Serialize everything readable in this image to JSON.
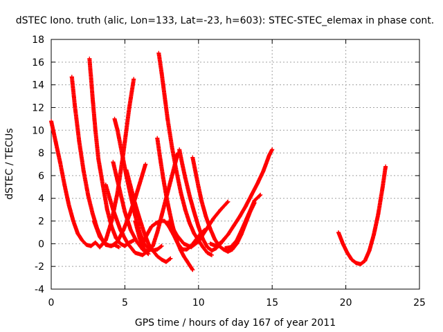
{
  "chart_data": {
    "type": "scatter",
    "title": "dSTEC Iono. truth (alic, Lon=133, Lat=-23, h=603): STEC-STEC_elemax in phase cont.",
    "xlabel": "GPS time / hours of day 167 of year 2011",
    "ylabel": "dSTEC  / TECUs",
    "xlim": [
      0,
      25
    ],
    "ylim": [
      -4,
      18
    ],
    "x_ticks": [
      0,
      5,
      10,
      15,
      20,
      25
    ],
    "y_ticks": [
      -4,
      -2,
      0,
      2,
      4,
      6,
      8,
      10,
      12,
      14,
      16,
      18
    ],
    "x_tick_labels": [
      "0",
      "5",
      "10",
      "15",
      "20",
      "25"
    ],
    "y_tick_labels": [
      "-4",
      "-2",
      "0",
      "2",
      "4",
      "6",
      "8",
      "10",
      "12",
      "14",
      "16",
      "18"
    ],
    "grid": true,
    "marker": "plus",
    "marker_color": "#ff0000",
    "series": [
      {
        "x": [
          0.0,
          0.3,
          0.6,
          0.9,
          1.2,
          1.5,
          1.8,
          2.1,
          2.4,
          2.7,
          3.0,
          3.3
        ],
        "y": [
          10.8,
          9.0,
          7.2,
          5.2,
          3.4,
          2.0,
          0.9,
          0.3,
          -0.1,
          -0.2,
          0.1,
          -0.3
        ]
      },
      {
        "x": [
          1.4,
          1.6,
          1.9,
          2.2,
          2.5,
          2.8,
          3.1,
          3.4,
          3.7,
          4.0,
          4.3,
          4.6
        ],
        "y": [
          14.7,
          12.2,
          9.0,
          6.4,
          4.3,
          2.7,
          1.4,
          0.5,
          0.0,
          -0.2,
          -0.1,
          -0.3
        ]
      },
      {
        "x": [
          2.6,
          2.8,
          3.0,
          3.2,
          3.5,
          3.8,
          4.1,
          4.4,
          4.7,
          5.0,
          5.3,
          5.6
        ],
        "y": [
          16.3,
          13.0,
          10.0,
          7.5,
          5.2,
          3.0,
          1.5,
          0.5,
          0.0,
          -0.2,
          0.1,
          0.3
        ]
      },
      {
        "x": [
          3.3,
          3.7,
          4.1,
          4.5,
          4.9,
          5.3,
          5.6
        ],
        "y": [
          -0.3,
          0.3,
          2.0,
          4.5,
          8.0,
          12.0,
          14.5
        ]
      },
      {
        "x": [
          4.3,
          4.5,
          4.8,
          5.1,
          5.4,
          5.7,
          6.0,
          6.3,
          6.6,
          6.9,
          7.2,
          7.5
        ],
        "y": [
          11.0,
          10.0,
          8.0,
          6.0,
          4.2,
          2.5,
          1.0,
          0.0,
          -0.4,
          -0.6,
          -0.5,
          -0.2
        ]
      },
      {
        "x": [
          2.9,
          3.3,
          3.7,
          4.1,
          4.5,
          4.9,
          5.3,
          5.7,
          6.1,
          6.4
        ],
        "y": [
          2.0,
          0.6,
          -0.1,
          -0.2,
          0.2,
          1.2,
          2.5,
          4.0,
          5.7,
          7.0
        ]
      },
      {
        "x": [
          4.2,
          4.6,
          5.0,
          5.4,
          5.8,
          6.2,
          6.6
        ],
        "y": [
          7.2,
          5.0,
          2.8,
          1.2,
          0.2,
          -0.5,
          -0.9
        ]
      },
      {
        "x": [
          3.7,
          4.2,
          4.7,
          5.2,
          5.7,
          6.2,
          6.6
        ],
        "y": [
          5.2,
          3.0,
          1.2,
          0.0,
          -0.8,
          -1.0,
          -0.6
        ]
      },
      {
        "x": [
          5.1,
          5.4,
          5.7,
          6.0,
          6.3,
          6.6,
          6.9,
          7.2,
          7.5,
          7.8,
          8.1
        ],
        "y": [
          6.5,
          5.0,
          3.5,
          2.2,
          1.0,
          0.0,
          -0.6,
          -1.1,
          -1.4,
          -1.6,
          -1.3
        ]
      },
      {
        "x": [
          5.7,
          6.0,
          6.3,
          6.6,
          6.9,
          7.2,
          7.5,
          7.8,
          8.1,
          8.4,
          8.6
        ],
        "y": [
          2.0,
          0.5,
          -0.5,
          -0.7,
          -0.2,
          1.0,
          2.5,
          4.0,
          5.5,
          7.0,
          8.0
        ]
      },
      {
        "x": [
          7.3,
          7.5,
          7.7,
          7.9,
          8.2,
          8.5,
          8.8,
          9.1,
          9.4,
          9.7,
          10.0,
          10.3,
          10.6,
          10.9
        ],
        "y": [
          16.8,
          15.0,
          13.0,
          11.0,
          8.5,
          6.4,
          4.5,
          3.0,
          1.8,
          0.9,
          0.3,
          -0.3,
          -0.8,
          -1.0
        ]
      },
      {
        "x": [
          7.2,
          7.4,
          7.6,
          7.8,
          8.0,
          8.2,
          8.4,
          8.6,
          8.8,
          9.0,
          9.2,
          9.4,
          9.6
        ],
        "y": [
          9.3,
          7.5,
          5.8,
          4.3,
          3.0,
          1.8,
          0.8,
          0.0,
          -0.6,
          -1.1,
          -1.5,
          -1.9,
          -2.3
        ]
      },
      {
        "x": [
          6.2,
          6.5,
          6.8,
          7.1,
          7.4,
          7.7,
          8.0,
          8.3,
          8.6,
          8.9,
          9.2,
          9.5,
          9.8,
          10.1,
          10.4
        ],
        "y": [
          0.0,
          0.8,
          1.5,
          1.8,
          2.0,
          2.0,
          1.5,
          0.8,
          0.0,
          -0.5,
          -0.5,
          -0.2,
          0.3,
          0.8,
          1.2
        ]
      },
      {
        "x": [
          8.7,
          8.9,
          9.1,
          9.4,
          9.7,
          10.0,
          10.3,
          10.6,
          10.9,
          11.2,
          11.5,
          11.8
        ],
        "y": [
          8.3,
          7.0,
          5.8,
          4.2,
          2.8,
          1.5,
          0.4,
          -0.3,
          -0.6,
          -0.4,
          0.0,
          0.5
        ]
      },
      {
        "x": [
          9.6,
          9.8,
          10.0,
          10.2,
          10.5,
          10.8,
          11.1,
          11.4,
          11.7,
          12.0,
          12.3,
          12.6,
          12.9,
          13.2,
          13.5,
          13.8
        ],
        "y": [
          7.6,
          6.3,
          5.0,
          3.8,
          2.4,
          1.3,
          0.4,
          -0.2,
          -0.5,
          -0.7,
          -0.5,
          0.0,
          0.8,
          1.8,
          2.8,
          3.6
        ]
      },
      {
        "x": [
          8.0,
          8.5,
          9.0,
          9.5,
          10.0,
          10.5,
          11.0,
          11.5,
          12.0
        ],
        "y": [
          2.0,
          0.8,
          0.0,
          -0.3,
          0.2,
          1.2,
          2.2,
          3.0,
          3.7
        ]
      },
      {
        "x": [
          10.8,
          11.2,
          11.6,
          12.0,
          12.4,
          12.8,
          13.2,
          13.6,
          14.0,
          14.4,
          14.8,
          15.0
        ],
        "y": [
          0.0,
          -0.2,
          0.2,
          0.8,
          1.6,
          2.4,
          3.3,
          4.3,
          5.3,
          6.4,
          7.8,
          8.3
        ]
      },
      {
        "x": [
          11.8,
          12.2,
          12.6,
          13.0,
          13.4,
          13.8,
          14.2
        ],
        "y": [
          -0.4,
          -0.3,
          0.3,
          1.4,
          2.6,
          3.8,
          4.3
        ]
      },
      {
        "x": [
          19.5,
          19.8,
          20.1,
          20.4,
          20.7,
          21.0,
          21.3,
          21.6,
          21.9,
          22.2,
          22.5,
          22.7
        ],
        "y": [
          1.0,
          0.0,
          -0.8,
          -1.4,
          -1.7,
          -1.8,
          -1.5,
          -0.6,
          0.8,
          2.6,
          5.0,
          6.8
        ]
      }
    ]
  }
}
